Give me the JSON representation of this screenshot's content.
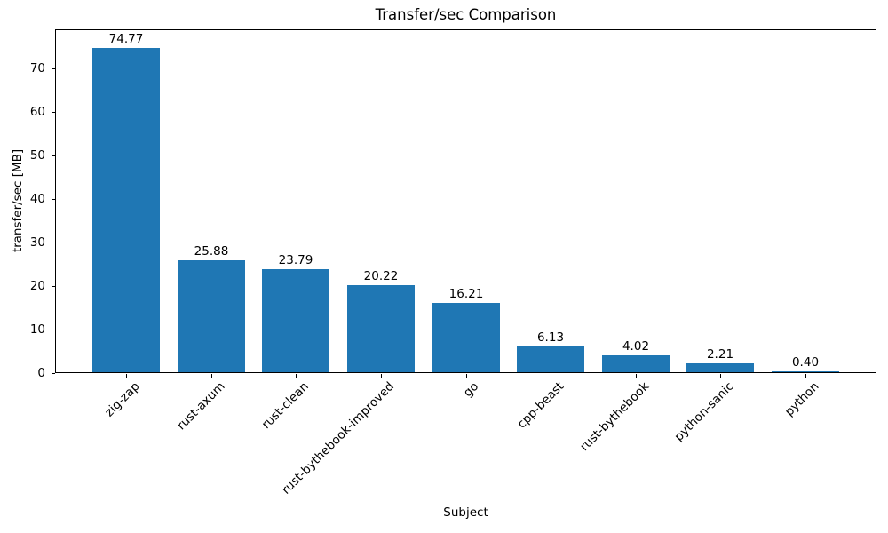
{
  "chart_data": {
    "type": "bar",
    "title": "Transfer/sec Comparison",
    "xlabel": "Subject",
    "ylabel": "transfer/sec [MB]",
    "categories": [
      "zig-zap",
      "rust-axum",
      "rust-clean",
      "rust-bythebook-improved",
      "go",
      "cpp-beast",
      "rust-bythebook",
      "python-sanic",
      "python"
    ],
    "values": [
      74.77,
      25.88,
      23.79,
      20.22,
      16.21,
      6.13,
      4.02,
      2.21,
      0.4
    ],
    "value_labels": [
      "74.77",
      "25.88",
      "23.79",
      "20.22",
      "16.21",
      "6.13",
      "4.02",
      "2.21",
      "0.40"
    ],
    "yticks": [
      0,
      10,
      20,
      30,
      40,
      50,
      60,
      70
    ],
    "ylim": [
      0,
      79
    ],
    "x_tick_rotation_deg": 45,
    "grid": false,
    "legend_position": "none",
    "bar_color": "#1f77b4",
    "axis_color": "#000000",
    "text_color": "#000000",
    "background_color": "#ffffff"
  }
}
